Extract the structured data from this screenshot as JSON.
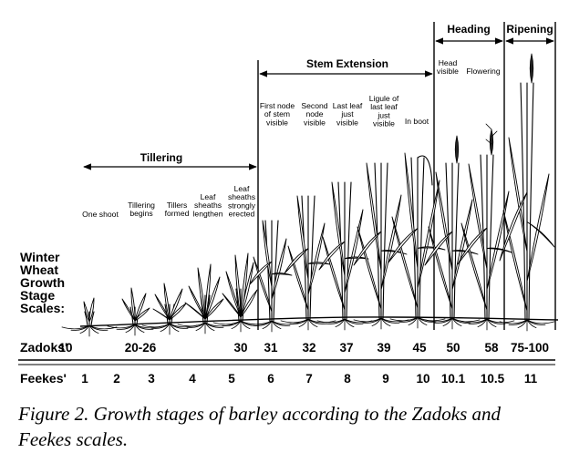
{
  "figure": {
    "caption": "Figure 2.  Growth stages of barley according to the Zadoks and Feekes scales.",
    "scale_title": [
      "Winter",
      "Wheat",
      "Growth",
      "Stage",
      "Scales:"
    ],
    "phases": {
      "tillering": "Tillering",
      "stem_extension": "Stem Extension",
      "heading": "Heading",
      "ripening": "Ripening"
    },
    "stage_notes": {
      "one_shoot": [
        "One shoot"
      ],
      "tillering_begins": [
        "Tillering",
        "begins"
      ],
      "tillers_formed": [
        "Tillers",
        "formed"
      ],
      "leaf_sheaths_lengthen": [
        "Leaf",
        "sheaths",
        "lengthen"
      ],
      "leaf_sheaths_strongly_erected": [
        "Leaf",
        "sheaths",
        "strongly",
        "erected"
      ],
      "first_node": [
        "First node",
        "of stem",
        "visible"
      ],
      "second_node": [
        "Second",
        "node",
        "visible"
      ],
      "last_leaf": [
        "Last leaf",
        "just",
        "visible"
      ],
      "ligule": [
        "Ligule of",
        "last leaf",
        "just",
        "visible"
      ],
      "in_boot": [
        "In boot"
      ],
      "head_visible": [
        "Head",
        "visible"
      ],
      "flowering": [
        "Flowering"
      ]
    },
    "zadoks": {
      "label": "Zadoks'",
      "values": [
        "10",
        "20-26",
        "30",
        "31",
        "32",
        "37",
        "39",
        "45",
        "50",
        "58",
        "75-100"
      ]
    },
    "feekes": {
      "label": "Feekes'",
      "values": [
        "1",
        "2",
        "3",
        "4",
        "5",
        "6",
        "7",
        "8",
        "9",
        "10",
        "10.1",
        "10.5",
        "11"
      ]
    }
  }
}
